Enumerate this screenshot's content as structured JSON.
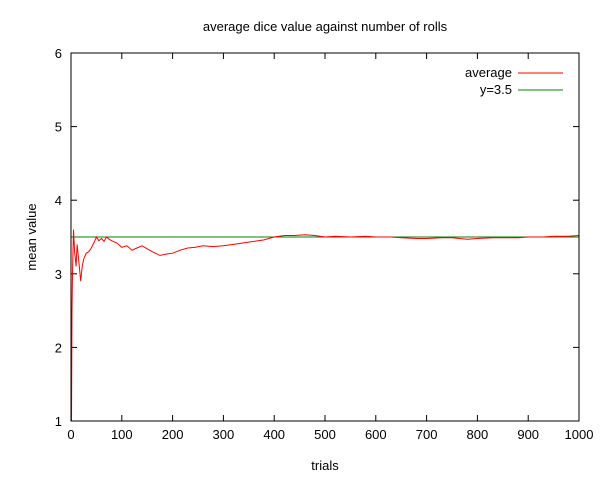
{
  "chart_data": {
    "type": "line",
    "title": "average dice value against number of rolls",
    "xlabel": "trials",
    "ylabel": "mean value",
    "xlim": [
      0,
      1000
    ],
    "ylim": [
      1,
      6
    ],
    "xticks": [
      "0",
      "100",
      "200",
      "300",
      "400",
      "500",
      "600",
      "700",
      "800",
      "900",
      "1000"
    ],
    "yticks": [
      "1",
      "2",
      "3",
      "4",
      "5",
      "6"
    ],
    "grid": false,
    "legend": "top-right",
    "series": [
      {
        "name": "average",
        "color": "#ff0000",
        "x": [
          1,
          2,
          3,
          5,
          7,
          10,
          12,
          15,
          19,
          22,
          25,
          30,
          35,
          40,
          45,
          50,
          55,
          60,
          65,
          70,
          75,
          80,
          90,
          100,
          110,
          120,
          130,
          140,
          150,
          160,
          175,
          190,
          200,
          215,
          230,
          245,
          260,
          280,
          300,
          320,
          340,
          360,
          380,
          400,
          420,
          440,
          460,
          480,
          500,
          520,
          550,
          580,
          600,
          630,
          650,
          680,
          700,
          730,
          750,
          780,
          800,
          830,
          850,
          880,
          900,
          930,
          950,
          980,
          1000
        ],
        "y": [
          1,
          2.5,
          3.0,
          3.6,
          3.3,
          3.1,
          3.4,
          3.2,
          2.9,
          3.1,
          3.2,
          3.28,
          3.3,
          3.35,
          3.42,
          3.5,
          3.45,
          3.48,
          3.44,
          3.5,
          3.47,
          3.45,
          3.42,
          3.36,
          3.38,
          3.32,
          3.35,
          3.38,
          3.34,
          3.3,
          3.25,
          3.27,
          3.28,
          3.32,
          3.35,
          3.36,
          3.38,
          3.37,
          3.38,
          3.4,
          3.42,
          3.44,
          3.46,
          3.5,
          3.52,
          3.52,
          3.53,
          3.52,
          3.5,
          3.51,
          3.5,
          3.51,
          3.5,
          3.5,
          3.49,
          3.48,
          3.48,
          3.49,
          3.49,
          3.47,
          3.48,
          3.49,
          3.49,
          3.49,
          3.5,
          3.5,
          3.51,
          3.51,
          3.52
        ]
      },
      {
        "name": "y=3.5",
        "color": "#008000",
        "x": [
          0,
          1000
        ],
        "y": [
          3.5,
          3.5
        ]
      }
    ]
  }
}
